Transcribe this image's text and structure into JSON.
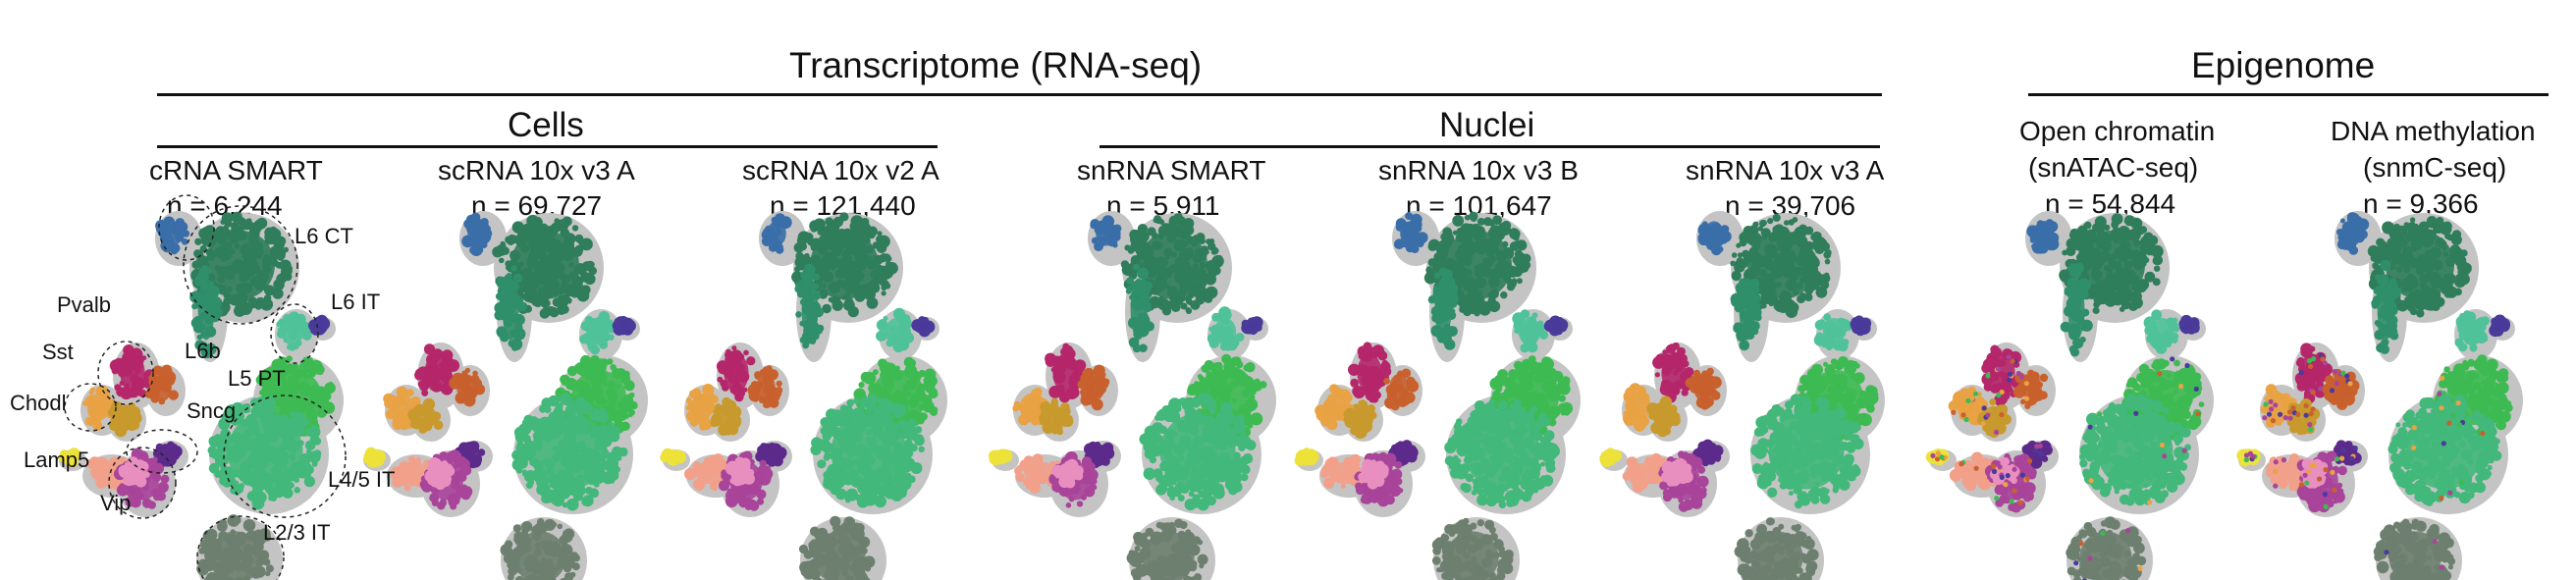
{
  "headers": {
    "transcriptome": "Transcriptome (RNA-seq)",
    "epigenome": "Epigenome",
    "cells": "Cells",
    "nuclei": "Nuclei"
  },
  "panels": [
    {
      "title": "cRNA SMART",
      "n": "n = 6,244"
    },
    {
      "title": "scRNA 10x v3 A",
      "n": "n = 69,727"
    },
    {
      "title": "scRNA 10x v2 A",
      "n": "n = 121,440"
    },
    {
      "title": "snRNA SMART",
      "n": "n = 5,911"
    },
    {
      "title": "snRNA 10x v3 B",
      "n": "n = 101,647"
    },
    {
      "title": "snRNA 10x v3 A",
      "n": "n = 39,706"
    },
    {
      "title": "Open chromatin",
      "subtitle": "(snATAC-seq)",
      "n": "n = 54,844"
    },
    {
      "title": "DNA methylation",
      "subtitle": "(snmC-seq)",
      "n": "n = 9,366"
    }
  ],
  "cluster_labels": {
    "l6ct": "L6 CT",
    "l6it": "L6 IT",
    "pvalb": "Pvalb",
    "l6b": "L6b",
    "sst": "Sst",
    "l5pt": "L5 PT",
    "chodl": "Chodl",
    "sncg": "Sncg",
    "lamp5": "Lamp5",
    "l45it": "L4/5 IT",
    "vip": "Vip",
    "l23it": "L2/3 IT"
  },
  "colors": {
    "L6 CT": "#2f7d5b",
    "L6 IT top": "#3a6ea8",
    "L6 IT": "#4fc29a",
    "L5 PT": "#2f8f6a",
    "L4/5 IT": "#3dbb52",
    "L4/5 IT alt": "#42b87a",
    "L2/3 IT": "#6d7f6e",
    "Pvalb": "#b5266a",
    "L6b": "#c8612d",
    "Sst": "#e9a244",
    "Sst dark": "#c89a2d",
    "Chodl": "#ede23a",
    "Sncg": "#5b2a8a",
    "Lamp5": "#f2a08a",
    "Vip": "#a8449a",
    "Vip light": "#e88fc0",
    "NP": "#4a3a9a",
    "background": "#c4c4c4"
  }
}
